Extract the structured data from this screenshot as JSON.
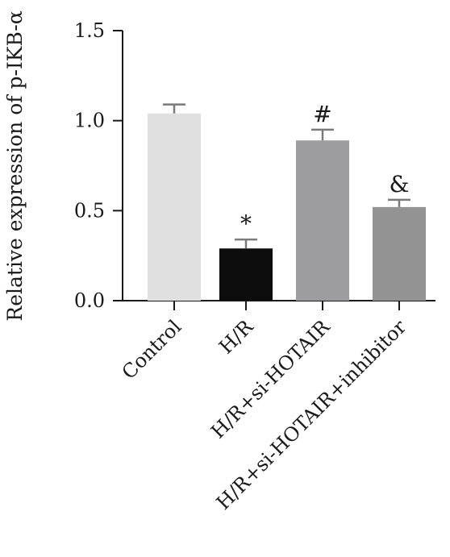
{
  "chart_data": {
    "type": "bar",
    "title": "",
    "xlabel": "",
    "ylabel": "Relative expression of p-IKB-α",
    "ylim": [
      0,
      1.5
    ],
    "yticks": [
      0.0,
      0.5,
      1.0,
      1.5
    ],
    "ytick_labels": [
      "0.0",
      "0.5",
      "1.0",
      "1.5"
    ],
    "categories": [
      "Control",
      "H/R",
      "H/R+si-HOTAIR",
      "H/R+si-HOTAIR+inhibitor"
    ],
    "values": [
      1.04,
      0.29,
      0.89,
      0.52
    ],
    "errors": [
      0.05,
      0.05,
      0.06,
      0.04
    ],
    "annotations": [
      "",
      "*",
      "#",
      "&"
    ],
    "colors": [
      "#e0e0e0",
      "#0d0d0d",
      "#9c9ca1",
      "#939393"
    ],
    "grid": false,
    "legend": "none"
  }
}
